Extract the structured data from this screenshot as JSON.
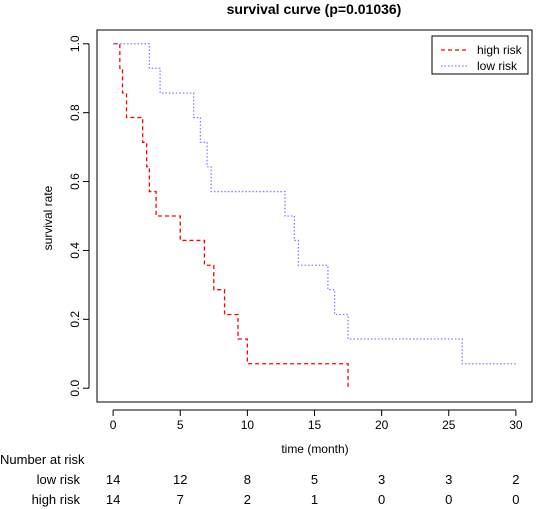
{
  "chart_data": {
    "type": "line",
    "title": "survival curve (p=0.01036)",
    "xlabel": "time (month)",
    "ylabel": "survival rate",
    "xlim": [
      -1.2,
      31.2
    ],
    "ylim": [
      -0.04,
      1.04
    ],
    "x_ticks": [
      0,
      5,
      10,
      15,
      20,
      25,
      30
    ],
    "y_ticks": [
      0.0,
      0.2,
      0.4,
      0.6,
      0.8,
      1.0
    ],
    "y_tick_labels": [
      "0.0",
      "0.2",
      "0.4",
      "0.6",
      "0.8",
      "1.0"
    ],
    "legend_position": "top-right",
    "grid": false,
    "series": [
      {
        "name": "high risk",
        "color": "#ff0000",
        "dash": "dashed",
        "x": [
          0,
          0.5,
          0.7,
          0.8,
          1.0,
          2.2,
          2.5,
          2.7,
          3.2,
          5.0,
          6.8,
          7.5,
          8.3,
          8.6,
          9.3,
          9.7,
          10.0,
          17.5
        ],
        "y": [
          1.0,
          0.929,
          0.857,
          0.857,
          0.786,
          0.714,
          0.643,
          0.571,
          0.5,
          0.429,
          0.357,
          0.286,
          0.214,
          0.214,
          0.143,
          0.143,
          0.071,
          0.0
        ]
      },
      {
        "name": "low risk",
        "color": "#8080ff",
        "dash": "dotted",
        "x": [
          0,
          2.7,
          3.5,
          6.0,
          6.3,
          6.5,
          7.0,
          7.3,
          12.8,
          13.5,
          13.8,
          16.0,
          16.3,
          16.5,
          17.5,
          26.0,
          30.0
        ],
        "y": [
          1.0,
          0.929,
          0.857,
          0.786,
          0.786,
          0.714,
          0.643,
          0.571,
          0.5,
          0.429,
          0.357,
          0.286,
          0.286,
          0.214,
          0.143,
          0.071,
          0.071
        ]
      }
    ]
  },
  "risk_table": {
    "title": "Number at risk",
    "rows": [
      {
        "label": "low risk",
        "values": [
          "14",
          "12",
          "8",
          "5",
          "3",
          "3",
          "2"
        ]
      },
      {
        "label": "high risk",
        "values": [
          "14",
          "7",
          "2",
          "1",
          "0",
          "0",
          "0"
        ]
      }
    ]
  }
}
